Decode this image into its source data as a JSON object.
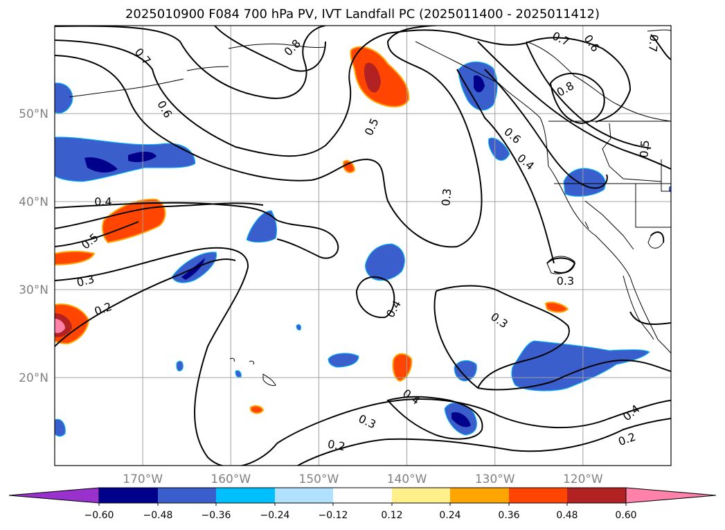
{
  "title": "2025010900 F084 700 hPa PV, IVT Landfall PC (2025011400 - 2025011412)",
  "map": {
    "lon_range": [
      -180,
      -110
    ],
    "lat_range": [
      10,
      60
    ],
    "lon_ticks": [
      {
        "value": -170,
        "label": "170°W"
      },
      {
        "value": -160,
        "label": "160°W"
      },
      {
        "value": -150,
        "label": "150°W"
      },
      {
        "value": -140,
        "label": "140°W"
      },
      {
        "value": -130,
        "label": "130°W"
      },
      {
        "value": -120,
        "label": "120°W"
      }
    ],
    "lat_ticks": [
      {
        "value": 20,
        "label": "20°N"
      },
      {
        "value": 30,
        "label": "30°N"
      },
      {
        "value": 40,
        "label": "40°N"
      },
      {
        "value": 50,
        "label": "50°N"
      }
    ],
    "grid": true,
    "pv_contour_labels": [
      {
        "lon": -170.0,
        "lat": 56.5,
        "text": "0.7",
        "rot": 50
      },
      {
        "lon": -153.0,
        "lat": 57.5,
        "text": "0.8",
        "rot": -45
      },
      {
        "lon": -167.5,
        "lat": 50.5,
        "text": "0.6",
        "rot": 60
      },
      {
        "lon": -174.5,
        "lat": 40.0,
        "text": "0.4",
        "rot": 0
      },
      {
        "lon": -176.0,
        "lat": 35.5,
        "text": "0.5",
        "rot": -40
      },
      {
        "lon": -176.5,
        "lat": 31.0,
        "text": "0.3",
        "rot": -15
      },
      {
        "lon": -174.5,
        "lat": 27.8,
        "text": "0.2",
        "rot": -20
      },
      {
        "lon": -144.0,
        "lat": 48.5,
        "text": "0.5",
        "rot": -65
      },
      {
        "lon": -135.5,
        "lat": 40.5,
        "text": "0.3",
        "rot": -85
      },
      {
        "lon": -141.5,
        "lat": 27.8,
        "text": "0.4",
        "rot": -60
      },
      {
        "lon": -129.5,
        "lat": 26.5,
        "text": "0.3",
        "rot": 35
      },
      {
        "lon": -139.5,
        "lat": 17.8,
        "text": "0.4",
        "rot": 35
      },
      {
        "lon": -144.5,
        "lat": 15.0,
        "text": "0.3",
        "rot": 25
      },
      {
        "lon": -148.0,
        "lat": 12.3,
        "text": "0.2",
        "rot": 10
      },
      {
        "lon": -122.5,
        "lat": 58.5,
        "text": "0.7",
        "rot": 25
      },
      {
        "lon": -119.0,
        "lat": 58.0,
        "text": "0.6",
        "rot": 55
      },
      {
        "lon": -112.0,
        "lat": 58.0,
        "text": "0.7",
        "rot": 95
      },
      {
        "lon": -122.0,
        "lat": 52.8,
        "text": "0.8",
        "rot": -30
      },
      {
        "lon": -128.0,
        "lat": 47.5,
        "text": "0.6",
        "rot": 40
      },
      {
        "lon": -126.5,
        "lat": 44.5,
        "text": "0.4",
        "rot": 40
      },
      {
        "lon": -113.0,
        "lat": 46.0,
        "text": "0.5",
        "rot": -85
      },
      {
        "lon": -122.0,
        "lat": 31.0,
        "text": "0.3",
        "rot": 0
      },
      {
        "lon": -114.5,
        "lat": 16.0,
        "text": "0.4",
        "rot": -40
      },
      {
        "lon": -115.0,
        "lat": 13.0,
        "text": "0.2",
        "rot": -20
      }
    ]
  },
  "colorbar": {
    "colors": [
      "#9932cc",
      "#00008b",
      "#3a5fcd",
      "#00bfff",
      "#b0e2ff",
      "#ffffff",
      "#fff08c",
      "#ffa500",
      "#ff4500",
      "#b22222",
      "#ff82ab"
    ],
    "tick_labels": [
      "−0.60",
      "−0.48",
      "−0.36",
      "−0.24",
      "−0.12",
      "0.12",
      "0.24",
      "0.36",
      "0.48",
      "0.60"
    ]
  }
}
